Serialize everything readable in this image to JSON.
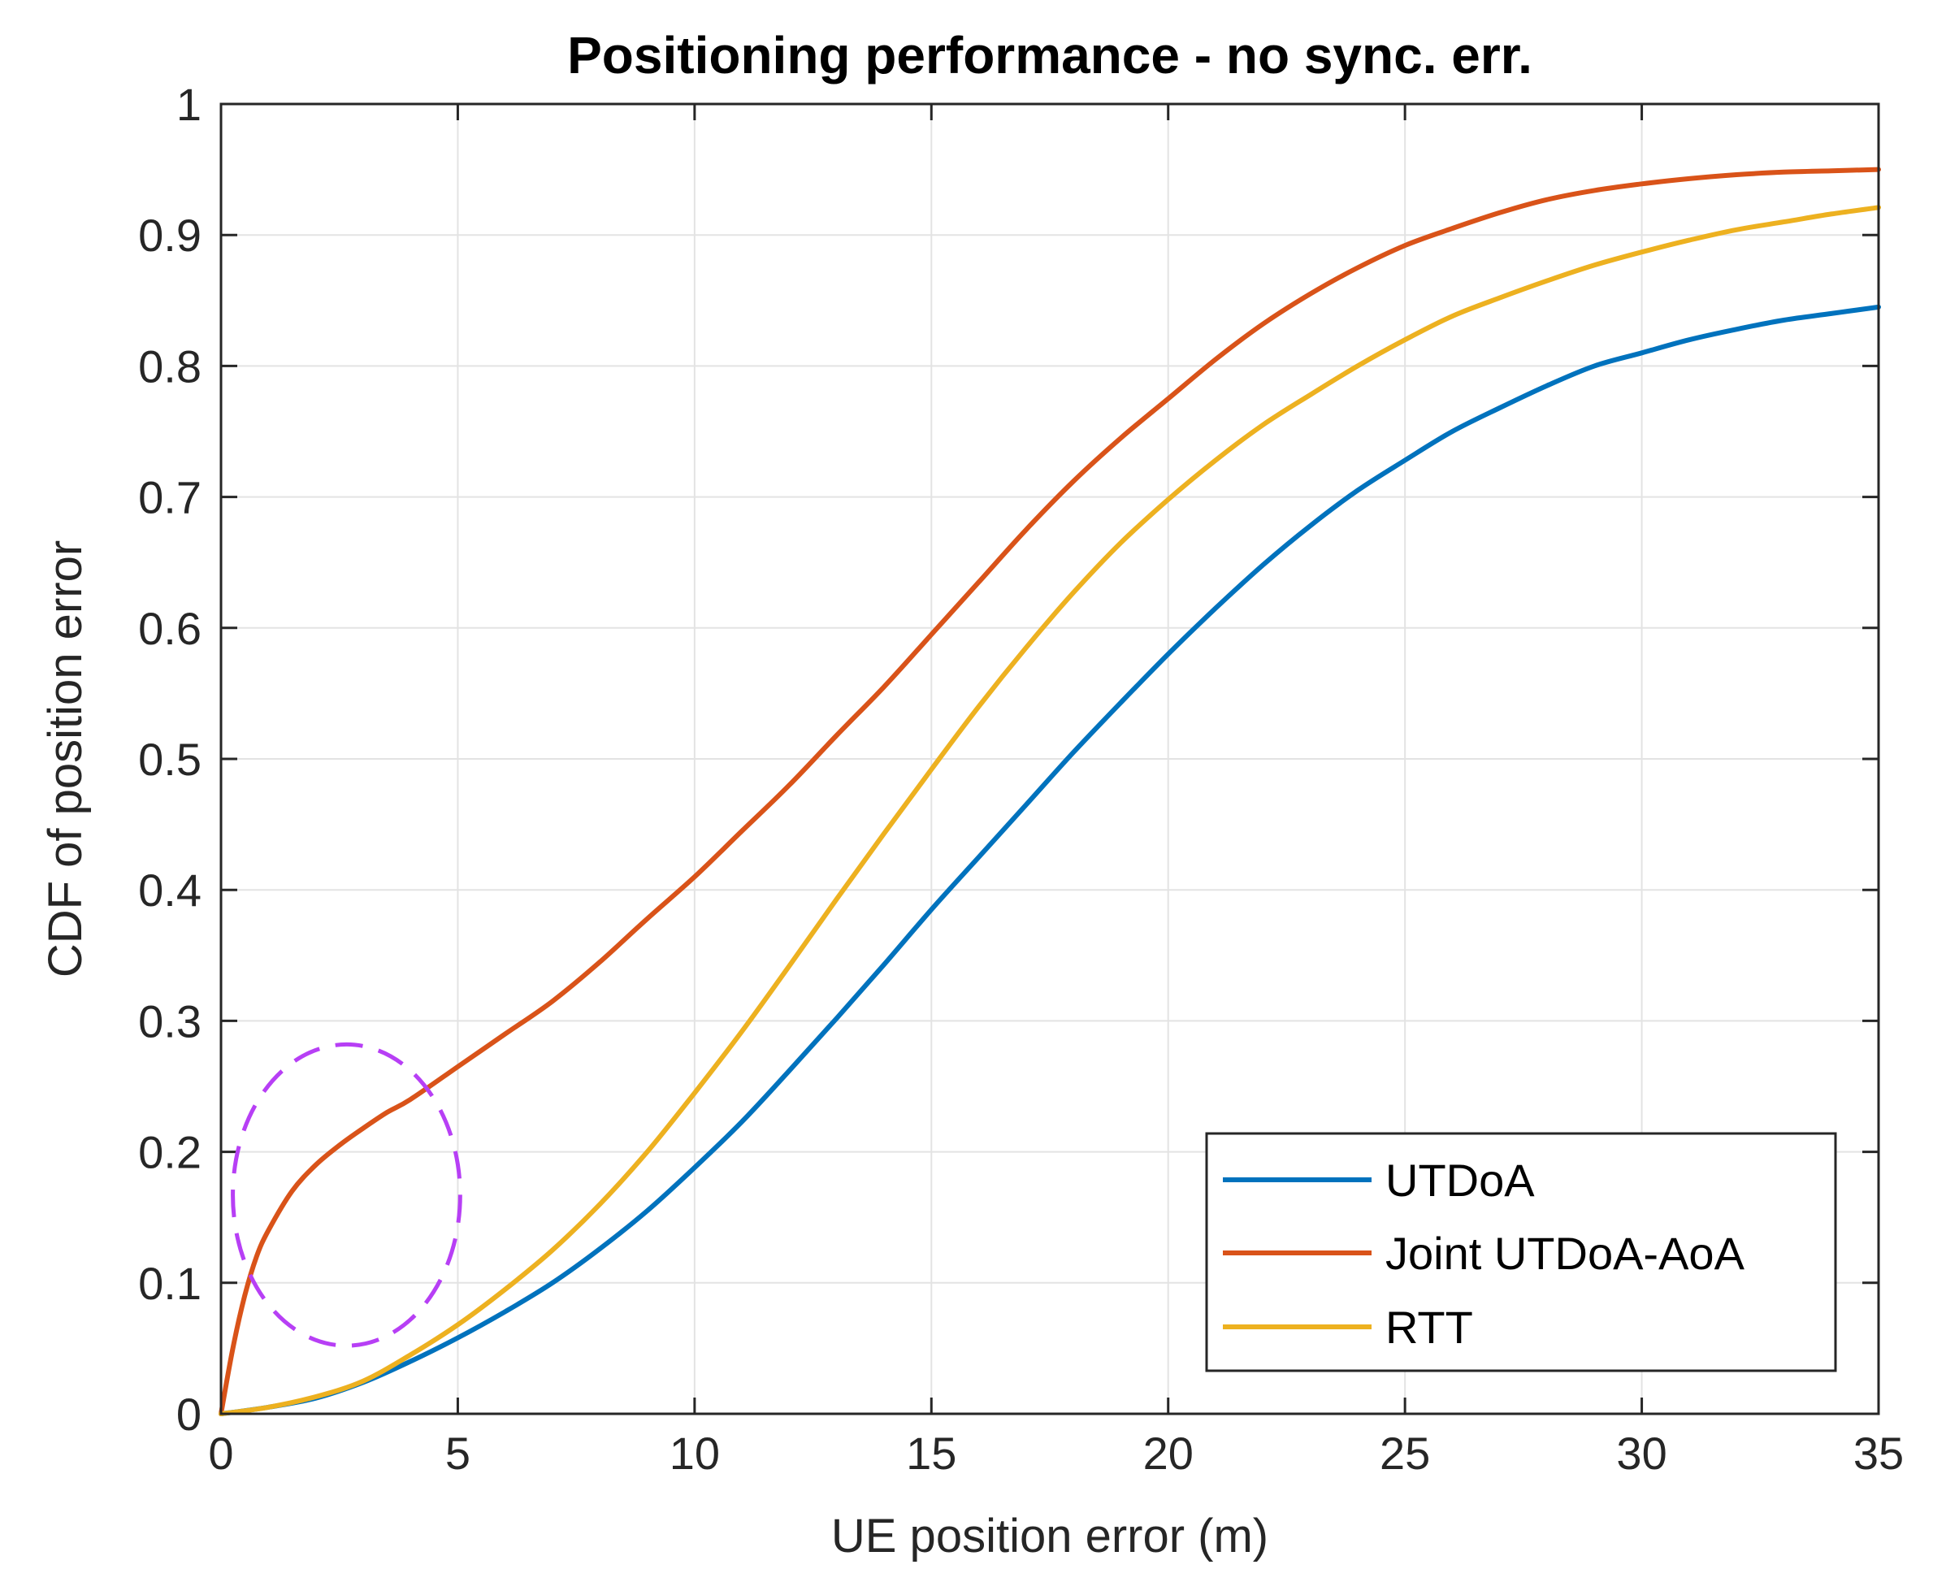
{
  "chart_data": {
    "type": "line",
    "title": "Positioning performance - no sync. err.",
    "xlabel": "UE position error (m)",
    "ylabel": "CDF of position error",
    "xlim": [
      0,
      35
    ],
    "ylim": [
      0,
      1
    ],
    "xticks": [
      0,
      5,
      10,
      15,
      20,
      25,
      30,
      35
    ],
    "yticks": [
      0,
      0.1,
      0.2,
      0.3,
      0.4,
      0.5,
      0.6,
      0.7,
      0.8,
      0.9,
      1
    ],
    "xtick_labels": [
      "0",
      "5",
      "10",
      "15",
      "20",
      "25",
      "30",
      "35"
    ],
    "ytick_labels": [
      "0",
      "0.1",
      "0.2",
      "0.3",
      "0.4",
      "0.5",
      "0.6",
      "0.7",
      "0.8",
      "0.9",
      "1"
    ],
    "grid": true,
    "legend_position": "bottom-right",
    "series": [
      {
        "name": "UTDoA",
        "color": "#0072BD",
        "x": [
          0,
          1,
          2,
          3,
          4,
          5,
          6,
          7,
          8,
          9,
          10,
          11,
          12,
          13,
          14,
          15,
          16,
          17,
          18,
          19,
          20,
          21,
          22,
          23,
          24,
          25,
          26,
          27,
          28,
          29,
          30,
          31,
          32,
          33,
          34,
          35
        ],
        "y": [
          0,
          0.005,
          0.012,
          0.024,
          0.04,
          0.058,
          0.078,
          0.1,
          0.126,
          0.155,
          0.188,
          0.223,
          0.262,
          0.302,
          0.343,
          0.385,
          0.425,
          0.465,
          0.505,
          0.543,
          0.58,
          0.615,
          0.648,
          0.678,
          0.705,
          0.728,
          0.75,
          0.768,
          0.785,
          0.8,
          0.81,
          0.82,
          0.828,
          0.835,
          0.84,
          0.845
        ]
      },
      {
        "name": "Joint UTDoA-AoA",
        "color": "#D95319",
        "x": [
          0,
          0.25,
          0.5,
          0.75,
          1,
          1.5,
          2,
          2.5,
          3,
          3.5,
          4,
          5,
          6,
          7,
          8,
          9,
          10,
          11,
          12,
          13,
          14,
          15,
          16,
          17,
          18,
          19,
          20,
          21,
          22,
          23,
          24,
          25,
          26,
          27,
          28,
          29,
          30,
          31,
          32,
          33,
          34,
          35
        ],
        "y": [
          0,
          0.05,
          0.09,
          0.12,
          0.14,
          0.17,
          0.19,
          0.205,
          0.218,
          0.23,
          0.24,
          0.265,
          0.29,
          0.315,
          0.345,
          0.378,
          0.41,
          0.445,
          0.48,
          0.518,
          0.555,
          0.595,
          0.635,
          0.675,
          0.712,
          0.745,
          0.775,
          0.805,
          0.832,
          0.855,
          0.875,
          0.892,
          0.905,
          0.917,
          0.927,
          0.934,
          0.939,
          0.943,
          0.946,
          0.948,
          0.949,
          0.95
        ]
      },
      {
        "name": "RTT",
        "color": "#EDB120",
        "x": [
          0,
          1,
          2,
          3,
          4,
          5,
          6,
          7,
          8,
          9,
          10,
          11,
          12,
          13,
          14,
          15,
          16,
          17,
          18,
          19,
          20,
          21,
          22,
          23,
          24,
          25,
          26,
          27,
          28,
          29,
          30,
          31,
          32,
          33,
          34,
          35
        ],
        "y": [
          0,
          0.005,
          0.013,
          0.025,
          0.045,
          0.068,
          0.095,
          0.125,
          0.16,
          0.2,
          0.245,
          0.292,
          0.342,
          0.393,
          0.443,
          0.492,
          0.54,
          0.585,
          0.627,
          0.665,
          0.698,
          0.728,
          0.755,
          0.778,
          0.8,
          0.82,
          0.838,
          0.852,
          0.865,
          0.877,
          0.887,
          0.896,
          0.904,
          0.91,
          0.916,
          0.921
        ]
      }
    ],
    "annotations": [
      {
        "type": "dashed-ellipse",
        "color": "#B73FF5",
        "cx": 2.65,
        "cy": 0.167,
        "rx_data": 2.4,
        "ry_data": 0.115
      }
    ]
  }
}
